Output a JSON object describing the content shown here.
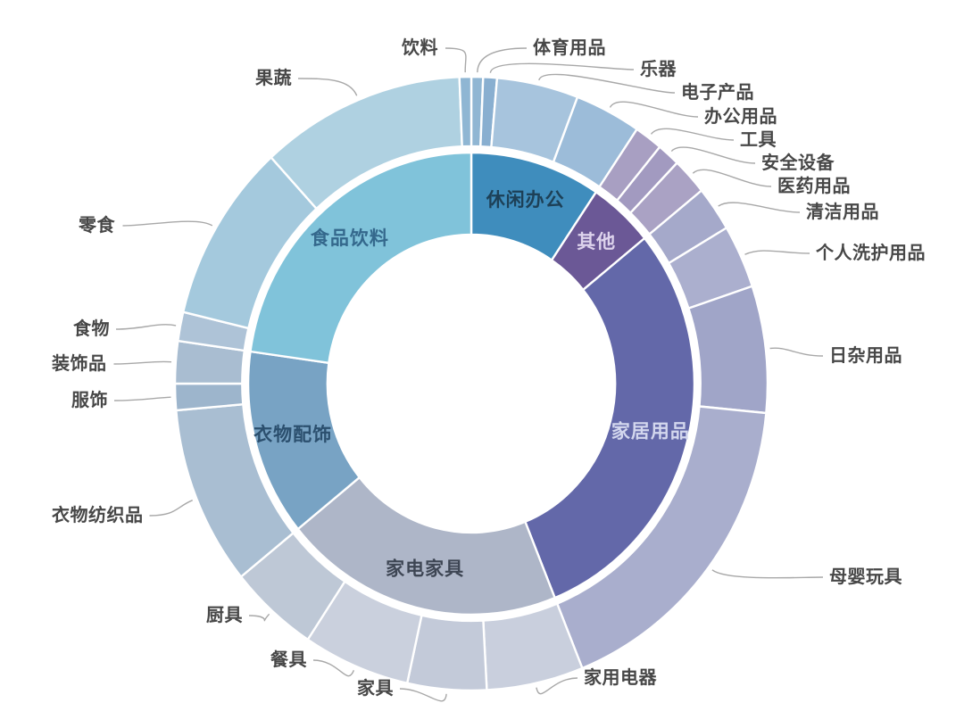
{
  "background": "#ffffff",
  "leader_color": "#a8a8a8",
  "outer_label_color": "#474747",
  "chart_data": {
    "type": "sunburst",
    "title": "",
    "rings": 2,
    "order": "clockwise-from-top",
    "units": "degrees-of-circle",
    "legend_position": "none",
    "categories": [
      {
        "label": "休闲办公",
        "degrees": 34,
        "color": "#3f8dbd",
        "label_color": "#1d4057",
        "children": [
          {
            "label": "体育用品",
            "degrees": 2.3,
            "color": "#90b6d3"
          },
          {
            "label": "乐器",
            "degrees": 2.7,
            "color": "#89afd0"
          },
          {
            "label": "电子产品",
            "degrees": 16,
            "color": "#a7c4dd"
          },
          {
            "label": "办公用品",
            "degrees": 13,
            "color": "#9cbcd9"
          }
        ]
      },
      {
        "label": "其他",
        "degrees": 17,
        "color": "#6b5896",
        "label_color": "#ddd3ec",
        "children": [
          {
            "label": "工具",
            "degrees": 5.5,
            "color": "#a89fc2"
          },
          {
            "label": "安全设备",
            "degrees": 4.5,
            "color": "#a29ac0"
          },
          {
            "label": "医药用品",
            "degrees": 7,
            "color": "#aaa2c4"
          }
        ]
      },
      {
        "label": "家居用品",
        "degrees": 107,
        "color": "#6368a9",
        "label_color": "#d3d7ee",
        "children": [
          {
            "label": "清洁用品",
            "degrees": 8.5,
            "color": "#a5a9ca"
          },
          {
            "label": "个人洗护用品",
            "degrees": 12,
            "color": "#abafce"
          },
          {
            "label": "日杂用品",
            "degrees": 24,
            "color": "#a0a5c8"
          },
          {
            "label": "母婴玩具",
            "degrees": 62.5,
            "color": "#a9aecd"
          }
        ]
      },
      {
        "label": "家电家具",
        "degrees": 73,
        "color": "#aeb6c8",
        "label_color": "#3e4654",
        "children": [
          {
            "label": "家用电器",
            "degrees": 19,
            "color": "#c9cfdd"
          },
          {
            "label": "家具",
            "degrees": 15.5,
            "color": "#c3cad9"
          },
          {
            "label": "餐具",
            "degrees": 21,
            "color": "#cad0dd"
          },
          {
            "label": "厨具",
            "degrees": 17.5,
            "color": "#bec8d6"
          }
        ]
      },
      {
        "label": "衣物配饰",
        "degrees": 47,
        "color": "#78a3c4",
        "label_color": "#2b4f6e",
        "children": [
          {
            "label": "衣物纺织品",
            "degrees": 34,
            "color": "#a9bed2"
          },
          {
            "label": "服饰",
            "degrees": 5,
            "color": "#9db5cc"
          },
          {
            "label": "装饰品",
            "degrees": 8,
            "color": "#a9bdd1"
          }
        ]
      },
      {
        "label": "食品饮料",
        "degrees": 82,
        "color": "#80c3da",
        "label_color": "#34688c",
        "children": [
          {
            "label": "食物",
            "degrees": 5.5,
            "color": "#aec3d7"
          },
          {
            "label": "零食",
            "degrees": 34,
            "color": "#a4c9dd"
          },
          {
            "label": "果蔬",
            "degrees": 40.2,
            "color": "#afd1e1"
          },
          {
            "label": "饮料",
            "degrees": 2.3,
            "color": "#8fb6d3"
          }
        ]
      }
    ]
  }
}
